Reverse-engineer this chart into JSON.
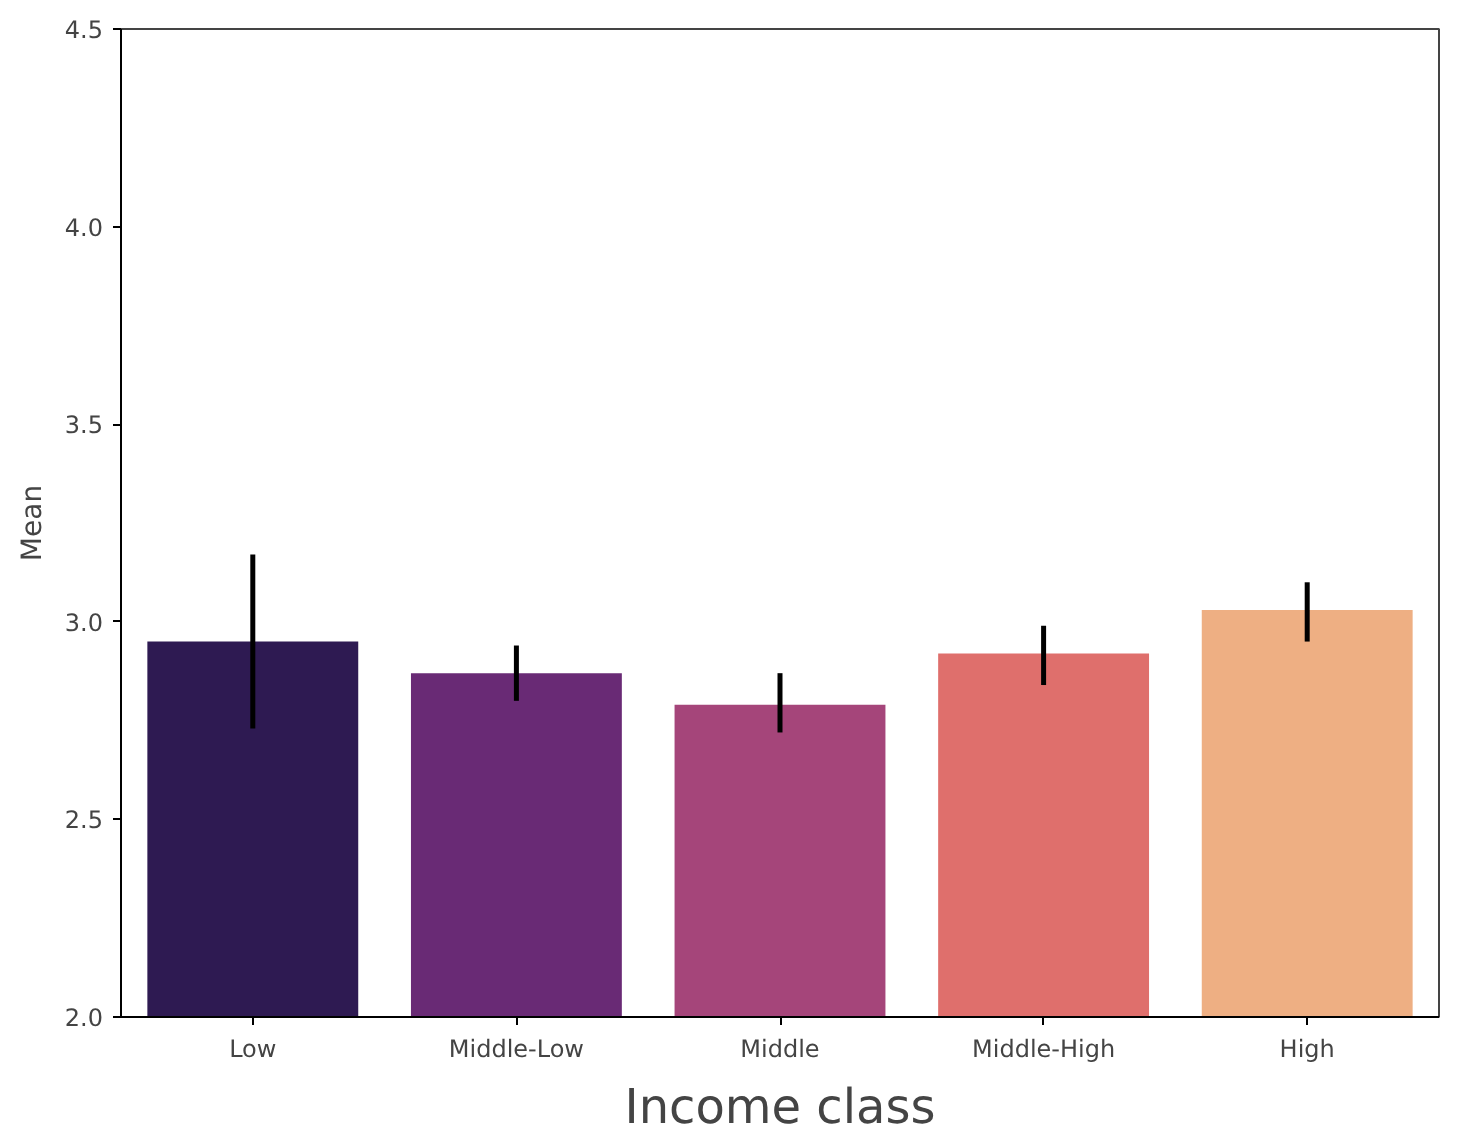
{
  "chart_data": {
    "type": "bar",
    "xlabel": "Income class",
    "ylabel": "Mean",
    "categories": [
      "Low",
      "Middle-Low",
      "Middle",
      "Middle-High",
      "High"
    ],
    "values": [
      2.95,
      2.87,
      2.79,
      2.92,
      3.03
    ],
    "colors": [
      "#2e1a52",
      "#692a75",
      "#a5457a",
      "#df6f6c",
      "#eeaf83"
    ],
    "errors": [
      [
        2.73,
        3.17
      ],
      [
        2.8,
        2.94
      ],
      [
        2.72,
        2.87
      ],
      [
        2.84,
        2.99
      ],
      [
        2.95,
        3.1
      ]
    ],
    "ylim": [
      2.0,
      4.5
    ],
    "yticks": [
      {
        "value": 2.0,
        "label": "2.0"
      },
      {
        "value": 2.5,
        "label": "2.5"
      },
      {
        "value": 3.0,
        "label": "3.0"
      },
      {
        "value": 3.5,
        "label": "3.5"
      },
      {
        "value": 4.0,
        "label": "4.0"
      },
      {
        "value": 4.5,
        "label": "4.5"
      }
    ],
    "grid": false
  }
}
